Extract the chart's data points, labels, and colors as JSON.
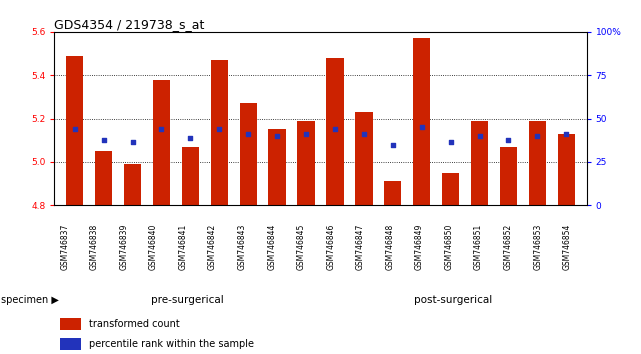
{
  "title": "GDS4354 / 219738_s_at",
  "samples": [
    "GSM746837",
    "GSM746838",
    "GSM746839",
    "GSM746840",
    "GSM746841",
    "GSM746842",
    "GSM746843",
    "GSM746844",
    "GSM746845",
    "GSM746846",
    "GSM746847",
    "GSM746848",
    "GSM746849",
    "GSM746850",
    "GSM746851",
    "GSM746852",
    "GSM746853",
    "GSM746854"
  ],
  "red_values": [
    5.49,
    5.05,
    4.99,
    5.38,
    5.07,
    5.47,
    5.27,
    5.15,
    5.19,
    5.48,
    5.23,
    4.91,
    5.57,
    4.95,
    5.19,
    5.07,
    5.19,
    5.13
  ],
  "blue_values": [
    5.15,
    5.1,
    5.09,
    5.15,
    5.11,
    5.15,
    5.13,
    5.12,
    5.13,
    5.15,
    5.13,
    5.08,
    5.16,
    5.09,
    5.12,
    5.1,
    5.12,
    5.13
  ],
  "ylim": [
    4.8,
    5.6
  ],
  "y_ticks_left": [
    4.8,
    5.0,
    5.2,
    5.4,
    5.6
  ],
  "y_ticks_right": [
    0,
    25,
    50,
    75,
    100
  ],
  "bar_color": "#cc2200",
  "dot_color": "#2233bb",
  "bar_width": 0.6,
  "baseline": 4.8,
  "pre_surgical_count": 9,
  "pre_color": "#ccffcc",
  "post_color": "#66cc55",
  "grey_color": "#cccccc",
  "legend_labels": [
    "transformed count",
    "percentile rank within the sample"
  ],
  "title_fontsize": 9,
  "tick_fontsize": 6.5
}
